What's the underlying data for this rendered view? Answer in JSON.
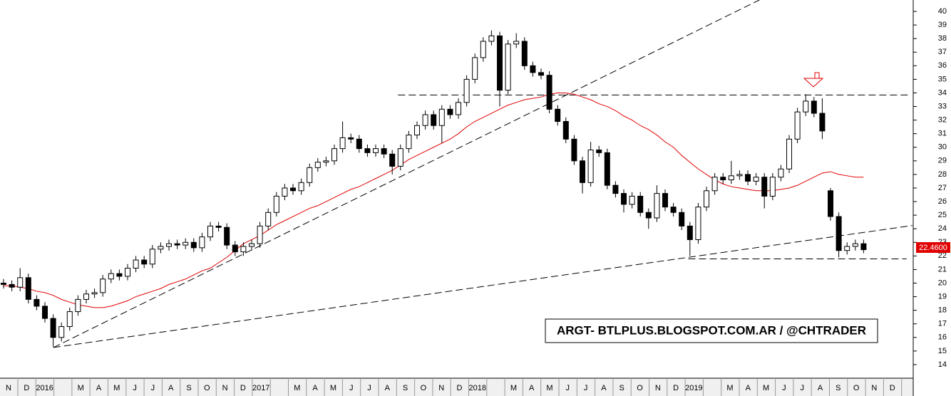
{
  "chart_data": {
    "type": "candlestick",
    "watermark": "ARGT- BTLPLUS.BLOGSPOT.COM.AR / @CHTRADER",
    "last_label": "22.4600",
    "categories": [
      "N",
      "D",
      "2016",
      null,
      "M",
      "A",
      "M",
      "J",
      "J",
      "A",
      "S",
      "O",
      "N",
      "D",
      "2017",
      null,
      "M",
      "A",
      "M",
      "J",
      "J",
      "A",
      "S",
      "O",
      "N",
      "D",
      "2018",
      null,
      "M",
      "A",
      "M",
      "J",
      "J",
      "A",
      "S",
      "O",
      "N",
      "D",
      "2019",
      null,
      "M",
      "A",
      "M",
      "J",
      "J",
      "A",
      "S",
      "O",
      "N",
      "D"
    ],
    "ylim": [
      13,
      40.84
    ],
    "yticks": [
      14,
      15,
      16,
      17,
      18,
      19,
      20,
      21,
      22,
      23,
      24,
      25,
      26,
      27,
      28,
      29,
      30,
      31,
      32,
      33,
      34,
      35,
      36,
      37,
      38,
      39,
      40
    ],
    "up_color": "#ffffff",
    "down_color": "#000000",
    "open": [
      20.0,
      19.9,
      19.7,
      20.4,
      18.8,
      18.3,
      17.4,
      16.0,
      16.8,
      17.9,
      18.8,
      19.2,
      19.3,
      20.3,
      20.7,
      20.5,
      21.1,
      21.7,
      21.4,
      22.5,
      22.7,
      22.9,
      22.8,
      23.0,
      22.6,
      23.4,
      24.2,
      24.1,
      22.8,
      22.3,
      22.7,
      22.9,
      24.2,
      25.2,
      26.4,
      27.0,
      26.8,
      27.4,
      28.5,
      28.9,
      29.0,
      29.9,
      30.7,
      30.6,
      29.9,
      29.6,
      29.9,
      29.5,
      28.6,
      29.9,
      30.9,
      31.6,
      32.4,
      31.6,
      32.8,
      32.4,
      33.3,
      35.0,
      36.6,
      37.8,
      38.2,
      34.2,
      37.6,
      37.8,
      36.0,
      35.5,
      35.3,
      32.8,
      31.9,
      30.6,
      29.0,
      27.4,
      29.8,
      29.6,
      27.2,
      26.6,
      25.8,
      26.4,
      25.2,
      24.8,
      26.6,
      25.6,
      25.2,
      24.2,
      23.2,
      25.6,
      26.8,
      27.8,
      27.6,
      27.9,
      28.0,
      27.5,
      27.8,
      26.4,
      27.8,
      28.4,
      30.6,
      32.6,
      33.4,
      32.5,
      26.8,
      24.9,
      22.4,
      22.7,
      22.9
    ],
    "high": [
      20.3,
      20.2,
      21.1,
      20.7,
      19.1,
      18.6,
      17.7,
      17.1,
      18.2,
      19.1,
      19.5,
      19.6,
      20.6,
      21.0,
      21.0,
      21.4,
      22.0,
      22.0,
      22.8,
      23.0,
      23.2,
      23.2,
      23.3,
      23.3,
      23.7,
      24.5,
      24.5,
      24.4,
      23.1,
      23.0,
      23.2,
      24.5,
      25.5,
      26.7,
      27.3,
      27.3,
      27.7,
      28.8,
      29.2,
      29.3,
      30.2,
      31.9,
      31.0,
      30.9,
      30.2,
      30.2,
      30.2,
      29.8,
      30.2,
      31.2,
      31.9,
      32.7,
      32.7,
      33.1,
      33.1,
      33.6,
      35.3,
      36.9,
      38.1,
      38.6,
      38.5,
      37.9,
      38.4,
      38.1,
      36.3,
      35.8,
      35.6,
      33.1,
      32.2,
      30.9,
      29.3,
      30.4,
      30.1,
      29.9,
      27.5,
      26.9,
      26.7,
      26.7,
      25.5,
      27.2,
      26.9,
      25.9,
      25.5,
      24.5,
      25.9,
      27.1,
      28.1,
      28.1,
      29.0,
      28.3,
      28.3,
      28.1,
      28.1,
      28.1,
      28.7,
      30.9,
      32.9,
      33.9,
      33.7,
      33.6,
      27.0,
      25.2,
      23.0,
      23.2,
      23.2
    ],
    "low": [
      19.6,
      19.4,
      19.4,
      18.5,
      18.0,
      17.1,
      15.3,
      15.7,
      16.5,
      17.6,
      18.5,
      18.9,
      19.0,
      20.0,
      20.2,
      20.2,
      20.8,
      21.1,
      21.1,
      22.2,
      22.4,
      22.5,
      22.5,
      22.3,
      22.3,
      23.1,
      23.8,
      22.5,
      22.0,
      22.0,
      22.4,
      22.6,
      23.9,
      24.9,
      26.1,
      26.5,
      26.5,
      27.1,
      28.2,
      28.6,
      28.7,
      29.6,
      30.3,
      29.6,
      29.3,
      29.3,
      29.2,
      28.0,
      28.3,
      29.6,
      30.6,
      31.3,
      31.3,
      30.3,
      32.1,
      32.1,
      33.0,
      34.7,
      36.3,
      37.5,
      33.0,
      33.9,
      37.3,
      35.7,
      35.2,
      35.0,
      32.5,
      31.6,
      30.3,
      28.7,
      26.6,
      27.1,
      29.3,
      26.9,
      26.3,
      25.2,
      25.5,
      24.9,
      24.0,
      24.5,
      25.3,
      24.9,
      23.9,
      22.0,
      22.9,
      25.3,
      26.5,
      27.3,
      27.3,
      27.6,
      27.2,
      27.2,
      25.5,
      26.1,
      27.5,
      28.1,
      30.3,
      32.3,
      32.2,
      30.6,
      24.6,
      21.9,
      22.1,
      22.4,
      22.2
    ],
    "close": [
      19.9,
      19.7,
      20.4,
      18.8,
      18.3,
      17.4,
      16.0,
      16.8,
      17.9,
      18.8,
      19.2,
      19.3,
      20.3,
      20.7,
      20.5,
      21.1,
      21.7,
      21.4,
      22.5,
      22.7,
      22.9,
      22.8,
      23.0,
      22.6,
      23.4,
      24.2,
      24.1,
      22.8,
      22.3,
      22.7,
      22.9,
      24.2,
      25.2,
      26.4,
      27.0,
      26.8,
      27.4,
      28.5,
      28.9,
      29.0,
      29.9,
      30.7,
      30.6,
      29.9,
      29.6,
      29.9,
      29.5,
      28.6,
      29.9,
      30.9,
      31.6,
      32.4,
      31.6,
      32.8,
      32.4,
      33.3,
      35.0,
      36.6,
      37.8,
      38.2,
      34.2,
      37.6,
      37.8,
      36.0,
      35.5,
      35.3,
      32.8,
      31.9,
      30.6,
      29.0,
      27.4,
      29.8,
      29.6,
      27.2,
      26.6,
      25.8,
      26.4,
      25.2,
      24.8,
      26.6,
      25.6,
      25.2,
      24.2,
      23.2,
      25.6,
      26.8,
      27.8,
      27.6,
      27.9,
      28.0,
      27.5,
      27.8,
      26.4,
      27.8,
      28.4,
      30.6,
      32.6,
      33.4,
      32.5,
      31.2,
      24.9,
      22.4,
      22.7,
      22.9,
      22.46
    ],
    "moving_average": {
      "color": "#e00000",
      "values": [
        19.8,
        19.8,
        19.7,
        19.6,
        19.4,
        19.3,
        19.1,
        18.8,
        18.6,
        18.4,
        18.3,
        18.2,
        18.2,
        18.3,
        18.5,
        18.7,
        19.0,
        19.2,
        19.4,
        19.6,
        19.9,
        20.1,
        20.3,
        20.6,
        20.9,
        21.1,
        21.5,
        21.9,
        22.4,
        22.9,
        23.2,
        23.5,
        23.9,
        24.3,
        24.6,
        24.9,
        25.2,
        25.5,
        25.7,
        26.0,
        26.3,
        26.6,
        26.9,
        27.1,
        27.4,
        27.7,
        28.0,
        28.3,
        28.7,
        29.1,
        29.4,
        29.7,
        30.0,
        30.3,
        30.6,
        31.0,
        31.5,
        31.9,
        32.2,
        32.5,
        32.8,
        33.1,
        33.3,
        33.5,
        33.6,
        33.7,
        33.9,
        34.0,
        34.0,
        33.9,
        33.7,
        33.5,
        33.2,
        33.0,
        32.7,
        32.3,
        32.0,
        31.6,
        31.3,
        30.9,
        30.4,
        30.0,
        29.4,
        28.9,
        28.4,
        28.0,
        27.6,
        27.3,
        27.1,
        27.0,
        26.9,
        26.8,
        26.8,
        26.8,
        26.9,
        27.0,
        27.2,
        27.5,
        27.8,
        28.1,
        28.2,
        28.0,
        27.9,
        27.8,
        27.8
      ]
    },
    "trendlines": [
      {
        "x": [
          6.03,
          91.4
        ],
        "y": [
          15.26,
          40.84
        ]
      },
      {
        "x": [
          6.03,
          109.9
        ],
        "y": [
          15.26,
          24.24
        ]
      },
      {
        "x": [
          47.7,
          109.5
        ],
        "y": [
          33.85,
          33.85
        ]
      },
      {
        "x": [
          82.8,
          109.2
        ],
        "y": [
          21.78,
          21.78
        ]
      }
    ]
  }
}
